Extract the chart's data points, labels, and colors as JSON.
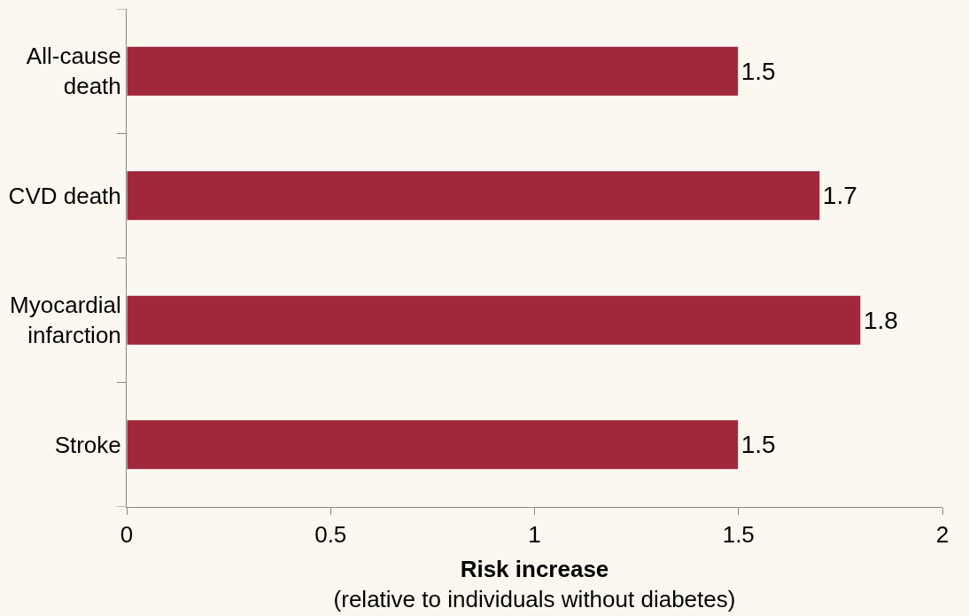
{
  "chart_data": {
    "type": "bar",
    "orientation": "horizontal",
    "categories": [
      "All-cause death",
      "CVD death",
      "Myocardial infarction",
      "Stroke"
    ],
    "values": [
      1.5,
      1.7,
      1.8,
      1.5
    ],
    "color": "#a0283a",
    "xlim": [
      0,
      2
    ],
    "xticks": [
      0,
      0.5,
      1,
      1.5,
      2
    ],
    "xlabel": "Risk increase\n(relative to individuals without diabetes)",
    "data_labels": true,
    "grid": false,
    "legend": false
  }
}
